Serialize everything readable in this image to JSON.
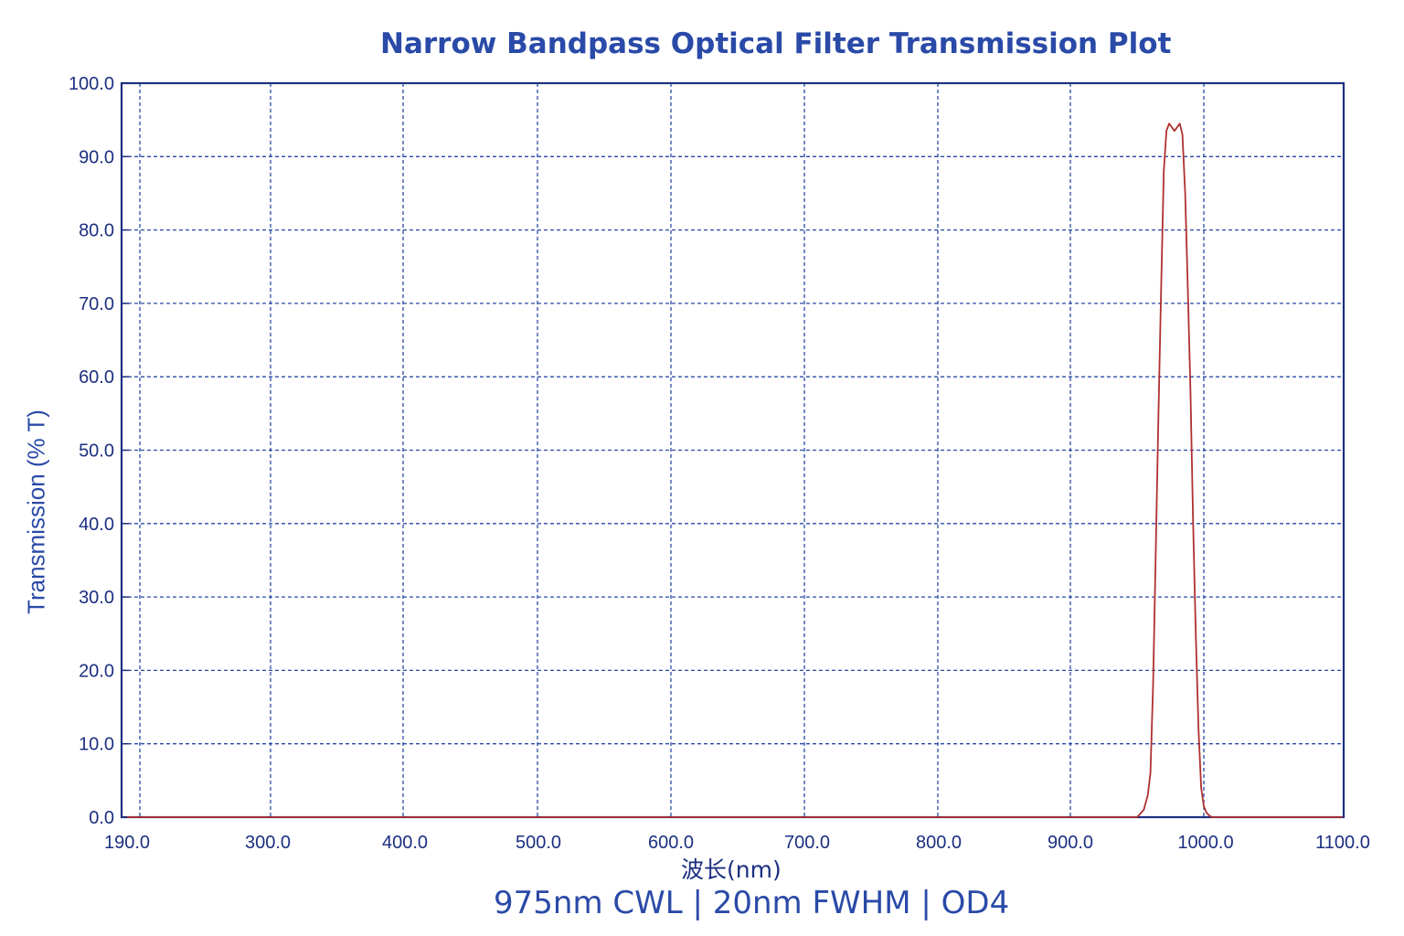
{
  "chart_data": {
    "type": "line",
    "title": "Narrow Bandpass Optical Filter Transmission Plot",
    "subtitle": "975nm CWL | 20nm FWHM | OD4",
    "xlabel": "波长(nm)",
    "ylabel": "Transmission (% T)",
    "xlim": [
      190.0,
      1100.0
    ],
    "ylim": [
      0.0,
      100.0
    ],
    "xticks": [
      "190.0",
      "300.0",
      "400.0",
      "500.0",
      "600.0",
      "700.0",
      "800.0",
      "900.0",
      "1000.0",
      "1100.0"
    ],
    "yticks": [
      "0.0",
      "10.0",
      "20.0",
      "30.0",
      "40.0",
      "50.0",
      "60.0",
      "70.0",
      "80.0",
      "90.0",
      "100.0"
    ],
    "grid": true,
    "series": [
      {
        "color": "#b03030",
        "x": [
          190,
          400,
          600,
          800,
          900,
          950,
          955,
          958,
          960,
          962,
          964,
          966,
          968,
          970,
          972,
          974,
          976,
          978,
          980,
          982,
          984,
          986,
          988,
          990,
          992,
          994,
          996,
          998,
          1000,
          1002,
          1004,
          1006,
          1010,
          1020,
          1030,
          1050,
          1100
        ],
        "y": [
          0,
          0,
          0,
          0,
          0,
          0,
          1,
          3,
          6,
          18,
          36,
          55,
          72,
          88,
          93.5,
          94.5,
          94,
          93.5,
          94,
          94.5,
          93,
          85,
          72,
          58,
          40,
          25,
          12,
          4,
          1.5,
          0.6,
          0.2,
          0,
          0,
          0,
          0,
          0,
          0
        ]
      }
    ]
  },
  "colors": {
    "axis": "#1c2f80",
    "grid": "#2a4aa8",
    "curve": "#b03030",
    "title": "#2a4aa8"
  }
}
